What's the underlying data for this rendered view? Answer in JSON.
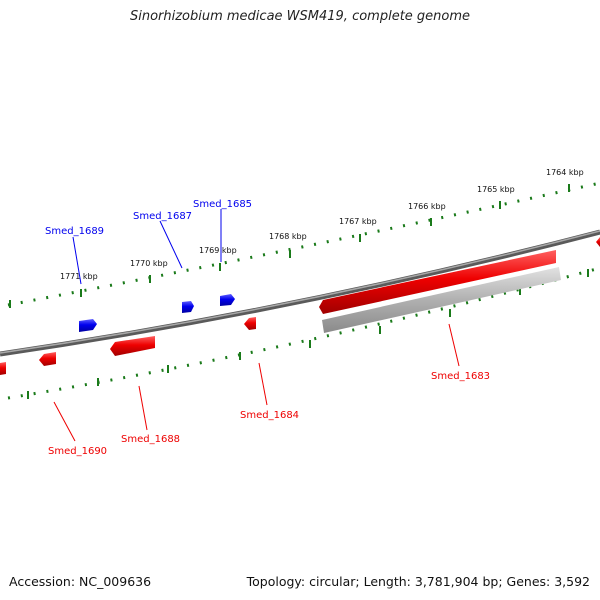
{
  "header": {
    "title": "Sinorhizobium medicae WSM419, complete genome"
  },
  "footer": {
    "accession": "Accession: NC_009636",
    "summary": "Topology: circular; Length: 3,781,904 bp; Genes: 3,592"
  },
  "colors": {
    "backbone": "#808080",
    "tick": "#1a7a1a",
    "forward_strand": "#0000ee",
    "reverse_strand": "#ee0000",
    "gray_feature": "#b0b0b0"
  },
  "scale": {
    "labels": [
      "1764 kbp",
      "1765 kbp",
      "1766 kbp",
      "1767 kbp",
      "1768 kbp",
      "1769 kbp",
      "1770 kbp",
      "1771 kbp"
    ]
  },
  "genes": {
    "forward": [
      "Smed_1685",
      "Smed_1687",
      "Smed_1689"
    ],
    "reverse": [
      "Smed_1683",
      "Smed_1684",
      "Smed_1688",
      "Smed_1690"
    ]
  }
}
